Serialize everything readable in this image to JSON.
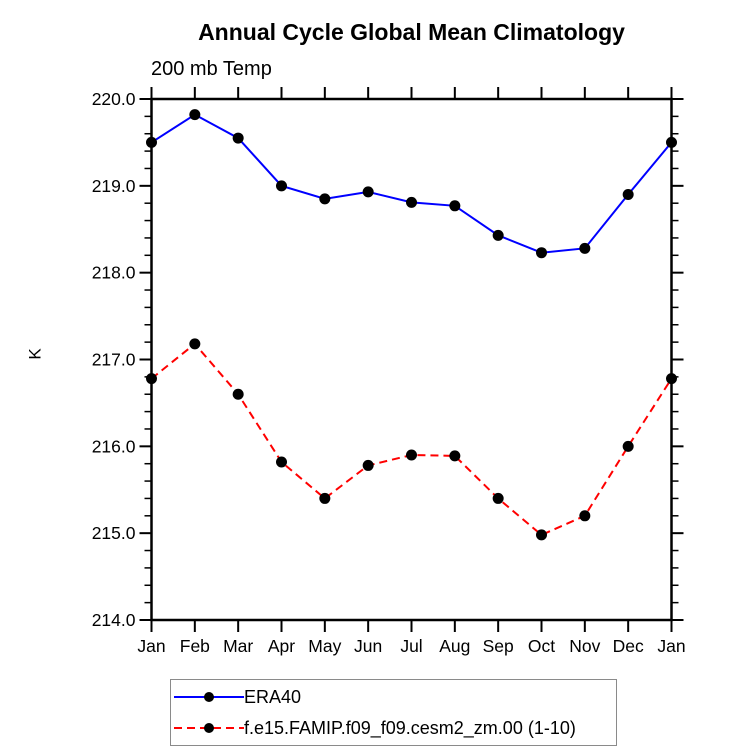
{
  "chart_data": {
    "type": "line",
    "title": "Annual Cycle Global Mean Climatology",
    "subtitle": "200 mb Temp",
    "ylabel": "K",
    "xlabel": "",
    "categories": [
      "Jan",
      "Feb",
      "Mar",
      "Apr",
      "May",
      "Jun",
      "Jul",
      "Aug",
      "Sep",
      "Oct",
      "Nov",
      "Dec",
      "Jan"
    ],
    "ylim": [
      214.0,
      220.0
    ],
    "yticks": [
      214.0,
      215.0,
      216.0,
      217.0,
      218.0,
      219.0,
      220.0
    ],
    "ytick_labels": [
      "214.0",
      "215.0",
      "216.0",
      "217.0",
      "218.0",
      "219.0",
      "220.0"
    ],
    "yminor_step": 0.2,
    "grid": false,
    "legend_position": "bottom",
    "series": [
      {
        "name": "ERA40",
        "color": "#0000ff",
        "line_style": "solid",
        "marker": "filled-circle",
        "marker_color": "#000000",
        "values": [
          219.5,
          219.82,
          219.55,
          219.0,
          218.85,
          218.93,
          218.81,
          218.77,
          218.43,
          218.23,
          218.28,
          218.9,
          219.5
        ]
      },
      {
        "name": "f.e15.FAMIP.f09_f09.cesm2_zm.00 (1-10)",
        "color": "#ff0000",
        "line_style": "dashed",
        "marker": "filled-circle",
        "marker_color": "#000000",
        "values": [
          216.78,
          217.18,
          216.6,
          215.82,
          215.4,
          215.78,
          215.9,
          215.89,
          215.4,
          214.98,
          215.2,
          216.0,
          216.78
        ]
      }
    ],
    "colors": {
      "axis": "#000000",
      "text": "#000000",
      "legend_border": "#8a8a8a"
    }
  }
}
